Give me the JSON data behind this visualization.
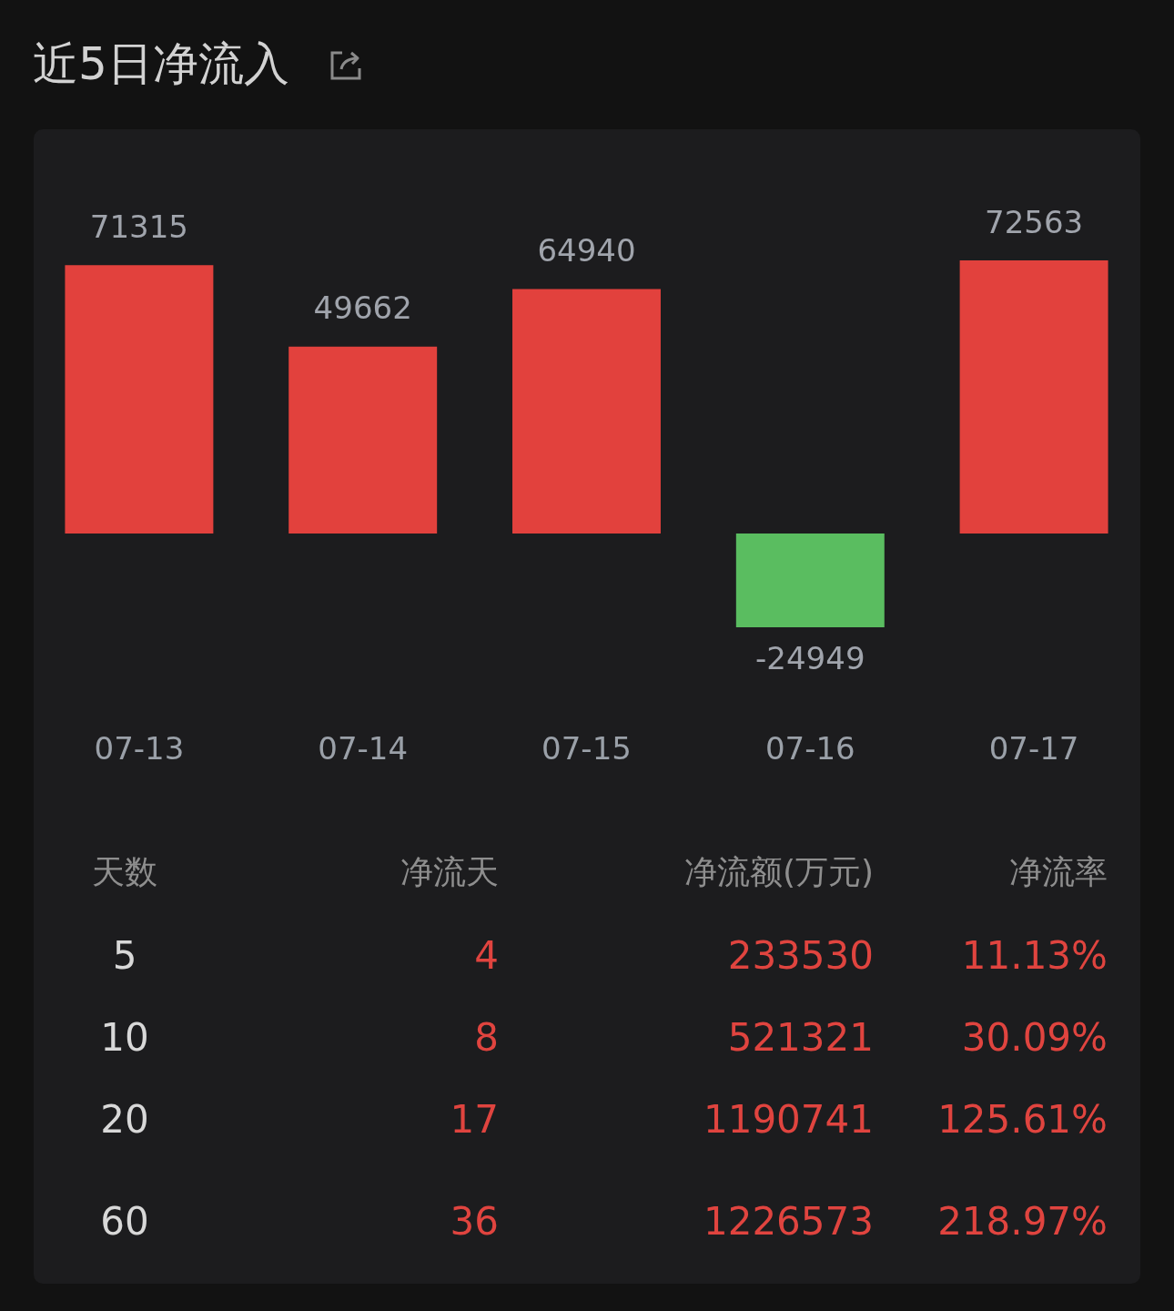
{
  "chart_data": [
    {
      "type": "bar",
      "title": "近5日净流入",
      "categories": [
        "07-13",
        "07-14",
        "07-15",
        "07-16",
        "07-17"
      ],
      "values": [
        71315,
        49662,
        64940,
        -24949,
        72563
      ],
      "colors": [
        "#e2413d",
        "#e2413d",
        "#e2413d",
        "#5abd60",
        "#e2413d"
      ],
      "data_labels": true
    },
    {
      "type": "other",
      "categories": [
        "天数",
        "净流天",
        "净流额(万元)",
        "净流率"
      ],
      "annotations": [
        "5",
        "4",
        "233530",
        "11.13%",
        "10",
        "8",
        "521321",
        "30.09%",
        "20",
        "17",
        "1190741",
        "125.61%",
        "60",
        "36",
        "1226573",
        "218.97%"
      ]
    }
  ]
}
